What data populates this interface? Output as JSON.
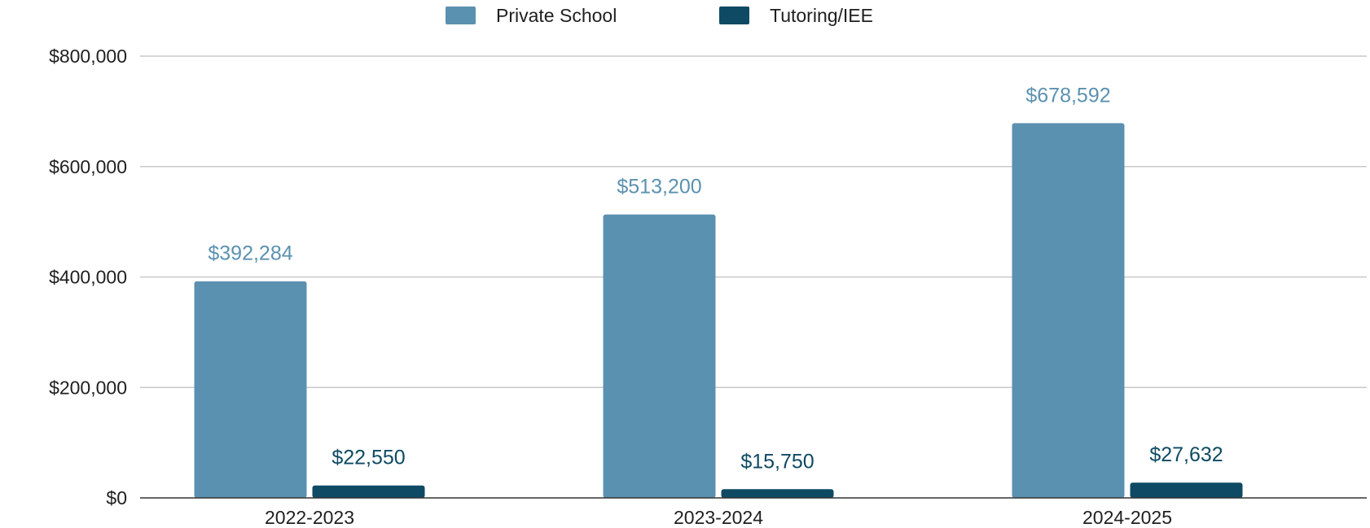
{
  "chart_data": {
    "type": "bar",
    "title": "",
    "xlabel": "",
    "ylabel": "",
    "categories": [
      "2022-2023",
      "2023-2024",
      "2024-2025"
    ],
    "series": [
      {
        "name": "Private School",
        "color": "#5b91b0",
        "values": [
          392284,
          513200,
          678592
        ],
        "labels": [
          "$392,284",
          "$513,200",
          "$678,592"
        ]
      },
      {
        "name": "Tutoring/IEE",
        "color": "#0e4a63",
        "values": [
          22550,
          15750,
          27632
        ],
        "labels": [
          "$22,550",
          "$15,750",
          "$27,632"
        ]
      }
    ],
    "ylim": [
      0,
      800000
    ],
    "yticks": [
      0,
      200000,
      400000,
      600000,
      800000
    ],
    "ytick_labels": [
      "$0",
      "$200,000",
      "$400,000",
      "$600,000",
      "$800,000"
    ],
    "grid": true,
    "legend_position": "top-center"
  }
}
